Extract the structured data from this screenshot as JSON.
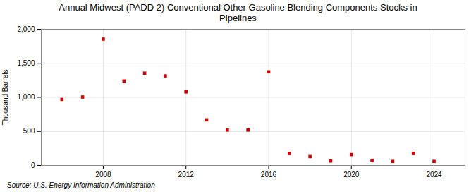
{
  "chart_data": {
    "type": "scatter",
    "title": "Annual Midwest (PADD 2) Conventional Other Gasoline Blending Components Stocks in\nPipelines",
    "ylabel": "Thousand Barrels",
    "source": "Source: U.S. Energy Information Administration",
    "x": [
      2006,
      2007,
      2008,
      2009,
      2010,
      2011,
      2012,
      2013,
      2014,
      2015,
      2016,
      2017,
      2018,
      2019,
      2020,
      2021,
      2022,
      2023,
      2024
    ],
    "values": [
      970,
      1005,
      1855,
      1240,
      1355,
      1315,
      1080,
      670,
      520,
      520,
      1375,
      175,
      130,
      65,
      160,
      75,
      60,
      175,
      60
    ],
    "color": "#cc0000",
    "marker": "square",
    "xlim": [
      2005.0,
      2025.5
    ],
    "xticks": [
      2008,
      2012,
      2016,
      2020,
      2024
    ],
    "ylim": [
      0,
      2000
    ],
    "yticks": [
      0,
      500,
      {
        "value": 1000,
        "label": "1,000"
      },
      {
        "value": 1500,
        "label": "1,500"
      },
      {
        "value": 2000,
        "label": "2,000"
      }
    ],
    "grid": true
  }
}
